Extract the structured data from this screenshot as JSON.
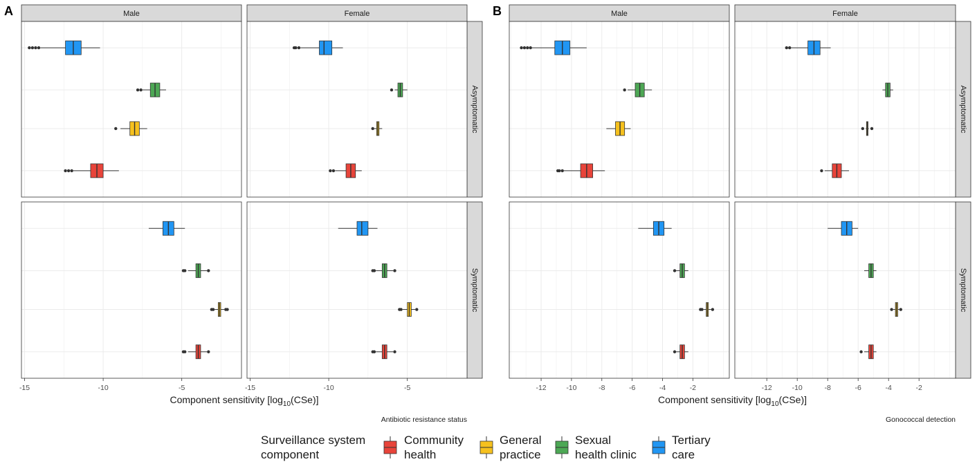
{
  "legend": {
    "title_line1": "Surveillance system",
    "title_line2": "component",
    "items": [
      {
        "line1": "Community",
        "line2": "health",
        "color": "#E8443A"
      },
      {
        "line1": "General",
        "line2": "practice",
        "color": "#F6C11E"
      },
      {
        "line1": "Sexual",
        "line2": "health clinic",
        "color": "#4DA855"
      },
      {
        "line1": "Tertiary",
        "line2": "care",
        "color": "#2196F3"
      }
    ]
  },
  "chart_data": [
    {
      "id": "A",
      "type": "boxplot",
      "letter": "A",
      "caption": "Antibiotic resistance status",
      "xlabel_main": "Component sensitivity [log",
      "xlabel_sub": "10",
      "xlabel_tail": "(CSe)]",
      "xlim": [
        -15.2,
        -1.2
      ],
      "xticks": [
        -15,
        -10,
        -5
      ],
      "xtick_labels": [
        "-15",
        "-10",
        "-5"
      ],
      "col_strips": [
        "Male",
        "Female"
      ],
      "row_strips": [
        "Asymptomatic",
        "Symptomatic"
      ],
      "categories": [
        "Tertiary care",
        "Sexual health clinic",
        "General practice",
        "Community health"
      ],
      "panels": [
        {
          "row": 0,
          "col": 0,
          "boxes": [
            {
              "component": "Tertiary care",
              "q1": -12.4,
              "med": -11.9,
              "q3": -11.4,
              "wlo": -14.0,
              "whi": -10.2,
              "outliers": [
                -14.1,
                -14.3,
                -14.5,
                -14.7
              ]
            },
            {
              "component": "Sexual health clinic",
              "q1": -7.0,
              "med": -6.7,
              "q3": -6.4,
              "wlo": -7.5,
              "whi": -6.0,
              "outliers": [
                -7.6,
                -7.8
              ]
            },
            {
              "component": "General practice",
              "q1": -8.3,
              "med": -8.0,
              "q3": -7.7,
              "wlo": -8.9,
              "whi": -7.2,
              "outliers": [
                -9.2
              ]
            },
            {
              "component": "Community health",
              "q1": -10.8,
              "med": -10.4,
              "q3": -10.0,
              "wlo": -11.9,
              "whi": -9.0,
              "outliers": [
                -12.0,
                -12.2,
                -12.4
              ]
            }
          ]
        },
        {
          "row": 0,
          "col": 1,
          "boxes": [
            {
              "component": "Tertiary care",
              "q1": -10.6,
              "med": -10.3,
              "q3": -9.8,
              "wlo": -11.8,
              "whi": -9.1,
              "outliers": [
                -11.9,
                -12.1,
                -12.2
              ]
            },
            {
              "component": "Sexual health clinic",
              "q1": -5.6,
              "med": -5.45,
              "q3": -5.3,
              "wlo": -5.8,
              "whi": -5.0,
              "outliers": [
                -6.0
              ]
            },
            {
              "component": "General practice",
              "q1": -6.95,
              "med": -6.88,
              "q3": -6.8,
              "wlo": -7.1,
              "whi": -6.6,
              "outliers": [
                -7.2
              ]
            },
            {
              "component": "Community health",
              "q1": -8.9,
              "med": -8.6,
              "q3": -8.3,
              "wlo": -9.6,
              "whi": -7.9,
              "outliers": [
                -9.7,
                -9.9
              ]
            }
          ]
        },
        {
          "row": 1,
          "col": 0,
          "boxes": [
            {
              "component": "Tertiary care",
              "q1": -6.2,
              "med": -5.85,
              "q3": -5.5,
              "wlo": -7.1,
              "whi": -4.8,
              "outliers": []
            },
            {
              "component": "Sexual health clinic",
              "q1": -4.1,
              "med": -3.95,
              "q3": -3.8,
              "wlo": -4.6,
              "whi": -3.4,
              "outliers": [
                -4.8,
                -4.9,
                -3.3
              ]
            },
            {
              "component": "General practice",
              "q1": -2.68,
              "med": -2.6,
              "q3": -2.52,
              "wlo": -2.9,
              "whi": -2.3,
              "outliers": [
                -3.0,
                -3.1,
                -2.2,
                -2.1
              ]
            },
            {
              "component": "Community health",
              "q1": -4.1,
              "med": -3.95,
              "q3": -3.8,
              "wlo": -4.6,
              "whi": -3.4,
              "outliers": [
                -4.8,
                -4.9,
                -3.3
              ]
            }
          ]
        },
        {
          "row": 1,
          "col": 1,
          "boxes": [
            {
              "component": "Tertiary care",
              "q1": -8.2,
              "med": -7.9,
              "q3": -7.5,
              "wlo": -9.4,
              "whi": -6.9,
              "outliers": []
            },
            {
              "component": "Sexual health clinic",
              "q1": -6.6,
              "med": -6.45,
              "q3": -6.3,
              "wlo": -7.0,
              "whi": -5.9,
              "outliers": [
                -7.1,
                -7.2,
                -5.8
              ]
            },
            {
              "component": "General practice",
              "q1": -5.0,
              "med": -4.88,
              "q3": -4.75,
              "wlo": -5.3,
              "whi": -4.5,
              "outliers": [
                -5.4,
                -5.5,
                -4.4
              ]
            },
            {
              "component": "Community health",
              "q1": -6.6,
              "med": -6.45,
              "q3": -6.3,
              "wlo": -7.0,
              "whi": -5.9,
              "outliers": [
                -7.1,
                -7.2,
                -5.8
              ]
            }
          ]
        }
      ]
    },
    {
      "id": "B",
      "type": "boxplot",
      "letter": "B",
      "caption": "Gonococcal detection",
      "xlabel_main": "Component sensitivity [log",
      "xlabel_sub": "10",
      "xlabel_tail": "(CSe)]",
      "xlim": [
        -14.1,
        0.4
      ],
      "xticks": [
        -12,
        -10,
        -8,
        -6,
        -4,
        -2
      ],
      "xtick_labels": [
        "-12",
        "-10",
        "-8",
        "-6",
        "-4",
        "-2"
      ],
      "col_strips": [
        "Male",
        "Female"
      ],
      "row_strips": [
        "Asymptomatic",
        "Symptomatic"
      ],
      "categories": [
        "Tertiary care",
        "Sexual health clinic",
        "General practice",
        "Community health"
      ],
      "panels": [
        {
          "row": 0,
          "col": 0,
          "boxes": [
            {
              "component": "Tertiary care",
              "q1": -11.1,
              "med": -10.6,
              "q3": -10.1,
              "wlo": -12.6,
              "whi": -9.0,
              "outliers": [
                -12.7,
                -12.9,
                -13.1,
                -13.3
              ]
            },
            {
              "component": "Sexual health clinic",
              "q1": -5.8,
              "med": -5.5,
              "q3": -5.2,
              "wlo": -6.3,
              "whi": -4.7,
              "outliers": [
                -6.5
              ]
            },
            {
              "component": "General practice",
              "q1": -7.1,
              "med": -6.8,
              "q3": -6.5,
              "wlo": -7.7,
              "whi": -6.1,
              "outliers": []
            },
            {
              "component": "Community health",
              "q1": -9.4,
              "med": -9.0,
              "q3": -8.6,
              "wlo": -10.5,
              "whi": -7.8,
              "outliers": [
                -10.6,
                -10.8,
                -10.9
              ]
            }
          ]
        },
        {
          "row": 0,
          "col": 1,
          "boxes": [
            {
              "component": "Tertiary care",
              "q1": -9.3,
              "med": -8.9,
              "q3": -8.5,
              "wlo": -10.4,
              "whi": -7.8,
              "outliers": [
                -10.5,
                -10.7
              ]
            },
            {
              "component": "Sexual health clinic",
              "q1": -4.2,
              "med": -4.05,
              "q3": -3.9,
              "wlo": -4.4,
              "whi": -3.7,
              "outliers": []
            },
            {
              "component": "General practice",
              "q1": -5.45,
              "med": -5.4,
              "q3": -5.35,
              "wlo": -5.5,
              "whi": -5.3,
              "outliers": [
                -5.7,
                -5.1
              ]
            },
            {
              "component": "Community health",
              "q1": -7.7,
              "med": -7.4,
              "q3": -7.1,
              "wlo": -8.2,
              "whi": -6.6,
              "outliers": [
                -8.4
              ]
            }
          ]
        },
        {
          "row": 1,
          "col": 0,
          "boxes": [
            {
              "component": "Tertiary care",
              "q1": -4.6,
              "med": -4.25,
              "q3": -3.9,
              "wlo": -5.6,
              "whi": -3.4,
              "outliers": []
            },
            {
              "component": "Sexual health clinic",
              "q1": -2.85,
              "med": -2.7,
              "q3": -2.55,
              "wlo": -3.1,
              "whi": -2.3,
              "outliers": [
                -3.2
              ]
            },
            {
              "component": "General practice",
              "q1": -1.12,
              "med": -1.05,
              "q3": -0.98,
              "wlo": -1.3,
              "whi": -0.8,
              "outliers": [
                -1.4,
                -1.5,
                -0.7
              ]
            },
            {
              "component": "Community health",
              "q1": -2.85,
              "med": -2.7,
              "q3": -2.55,
              "wlo": -3.1,
              "whi": -2.3,
              "outliers": [
                -3.2
              ]
            }
          ]
        },
        {
          "row": 1,
          "col": 1,
          "boxes": [
            {
              "component": "Tertiary care",
              "q1": -7.1,
              "med": -6.75,
              "q3": -6.4,
              "wlo": -8.0,
              "whi": -6.0,
              "outliers": []
            },
            {
              "component": "Sexual health clinic",
              "q1": -5.3,
              "med": -5.15,
              "q3": -5.0,
              "wlo": -5.6,
              "whi": -4.8,
              "outliers": []
            },
            {
              "component": "General practice",
              "q1": -3.55,
              "med": -3.48,
              "q3": -3.4,
              "wlo": -3.7,
              "whi": -3.3,
              "outliers": [
                -3.8,
                -3.2
              ]
            },
            {
              "component": "Community health",
              "q1": -5.3,
              "med": -5.15,
              "q3": -5.0,
              "wlo": -5.6,
              "whi": -4.8,
              "outliers": [
                -5.8
              ]
            }
          ]
        }
      ]
    }
  ]
}
